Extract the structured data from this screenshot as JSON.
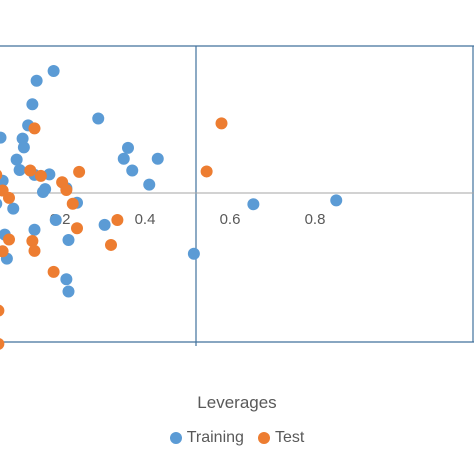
{
  "chart_data": {
    "type": "scatter",
    "title": "",
    "xlabel": "Leverages",
    "ylabel": "",
    "x_ticks": [
      "0.2",
      "0.4",
      "0.6",
      "0.8"
    ],
    "xlim": [
      0.0,
      0.85
    ],
    "ylim": [
      -3,
      3
    ],
    "threshold_x": 0.52,
    "grid": false,
    "legend_position": "bottom",
    "series": [
      {
        "name": "Training",
        "color": "#5B9BD5",
        "points": [
          [
            0.185,
            2.49
          ],
          [
            0.145,
            2.29
          ],
          [
            0.135,
            1.81
          ],
          [
            0.035,
            2.2
          ],
          [
            0.125,
            1.38
          ],
          [
            0.112,
            1.11
          ],
          [
            0.115,
            0.93
          ],
          [
            0.098,
            0.68
          ],
          [
            0.06,
            1.13
          ],
          [
            0.03,
            0.86
          ],
          [
            0.045,
            0.38
          ],
          [
            0.04,
            0.06
          ],
          [
            0.025,
            -0.35
          ],
          [
            0.05,
            -0.22
          ],
          [
            0.09,
            -0.32
          ],
          [
            0.07,
            -0.85
          ],
          [
            0.075,
            -1.34
          ],
          [
            0.005,
            -0.35
          ],
          [
            0.02,
            -0.55
          ],
          [
            0.105,
            0.47
          ],
          [
            0.14,
            0.37
          ],
          [
            0.175,
            0.38
          ],
          [
            0.165,
            0.08
          ],
          [
            0.19,
            -0.55
          ],
          [
            0.14,
            -0.75
          ],
          [
            0.22,
            -0.96
          ],
          [
            0.215,
            -1.76
          ],
          [
            0.22,
            -2.01
          ],
          [
            0.035,
            -1.9
          ],
          [
            0.04,
            -2.85
          ],
          [
            0.29,
            1.52
          ],
          [
            0.36,
            0.92
          ],
          [
            0.35,
            0.7
          ],
          [
            0.37,
            0.46
          ],
          [
            0.43,
            0.7
          ],
          [
            0.41,
            0.17
          ],
          [
            0.515,
            -1.24
          ],
          [
            0.305,
            -0.65
          ],
          [
            0.655,
            -0.23
          ],
          [
            0.85,
            -0.15
          ],
          [
            0.215,
            0.1
          ],
          [
            0.24,
            -0.2
          ],
          [
            0.16,
            0.02
          ],
          [
            0.04,
            -0.1
          ],
          [
            0.065,
            0.25
          ]
        ]
      },
      {
        "name": "Test",
        "color": "#ED7D31",
        "points": [
          [
            0.0,
            1.67
          ],
          [
            0.04,
            1.01
          ],
          [
            0.05,
            0.37
          ],
          [
            0.065,
            0.05
          ],
          [
            0.08,
            -0.1
          ],
          [
            0.23,
            -0.22
          ],
          [
            0.24,
            -0.72
          ],
          [
            0.335,
            -0.55
          ],
          [
            0.32,
            -1.06
          ],
          [
            0.245,
            0.43
          ],
          [
            0.14,
            1.32
          ],
          [
            0.13,
            0.46
          ],
          [
            0.155,
            0.35
          ],
          [
            0.205,
            0.22
          ],
          [
            0.135,
            -0.98
          ],
          [
            0.14,
            -1.18
          ],
          [
            0.185,
            -1.61
          ],
          [
            0.065,
            -1.19
          ],
          [
            0.055,
            -2.4
          ],
          [
            0.08,
            -0.95
          ],
          [
            0.58,
            1.42
          ],
          [
            0.545,
            0.44
          ],
          [
            0.215,
            0.06
          ],
          [
            0.055,
            -3.08
          ]
        ]
      }
    ]
  }
}
